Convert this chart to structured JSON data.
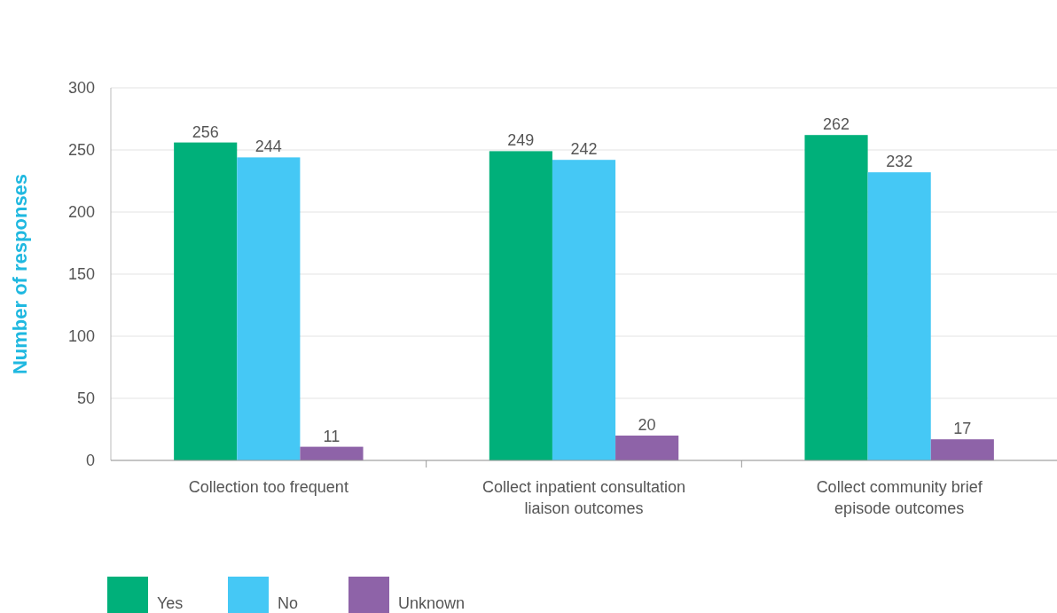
{
  "chart_data": {
    "type": "bar",
    "ylabel": "Number of responses",
    "categories": [
      "Collection too frequent",
      "Collect inpatient consultation liaison outcomes",
      "Collect community brief episode outcomes"
    ],
    "series": [
      {
        "name": "Yes",
        "color": "#00b07a",
        "values": [
          256,
          249,
          262
        ]
      },
      {
        "name": "No",
        "color": "#45c8f5",
        "values": [
          244,
          242,
          232
        ]
      },
      {
        "name": "Unknown",
        "color": "#8e63a8",
        "values": [
          11,
          20,
          17
        ]
      }
    ],
    "ylim": [
      0,
      300
    ],
    "yticks": [
      0,
      50,
      100,
      150,
      200,
      250,
      300
    ],
    "grid": "y",
    "legend": "bottom",
    "data_labels": true
  }
}
